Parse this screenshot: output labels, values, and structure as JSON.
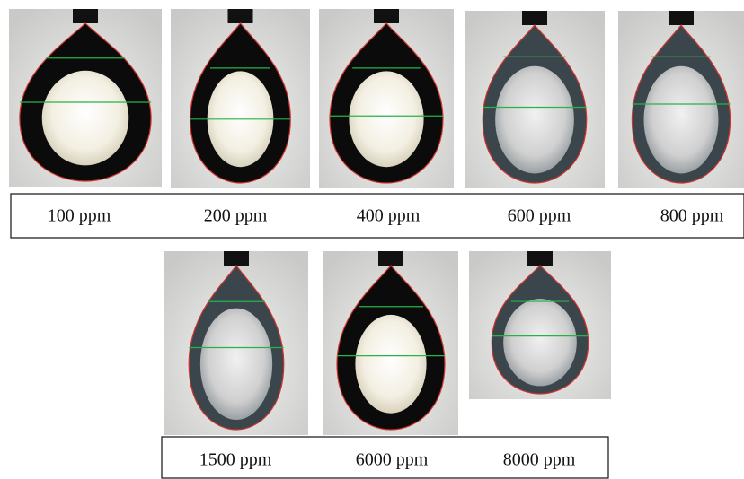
{
  "rows": [
    {
      "labels": [
        "100 ppm",
        "200 ppm",
        "400 ppm",
        "600 ppm",
        "800 ppm"
      ]
    },
    {
      "labels": [
        "1500 ppm",
        "6000 ppm",
        "8000 ppm"
      ]
    }
  ]
}
